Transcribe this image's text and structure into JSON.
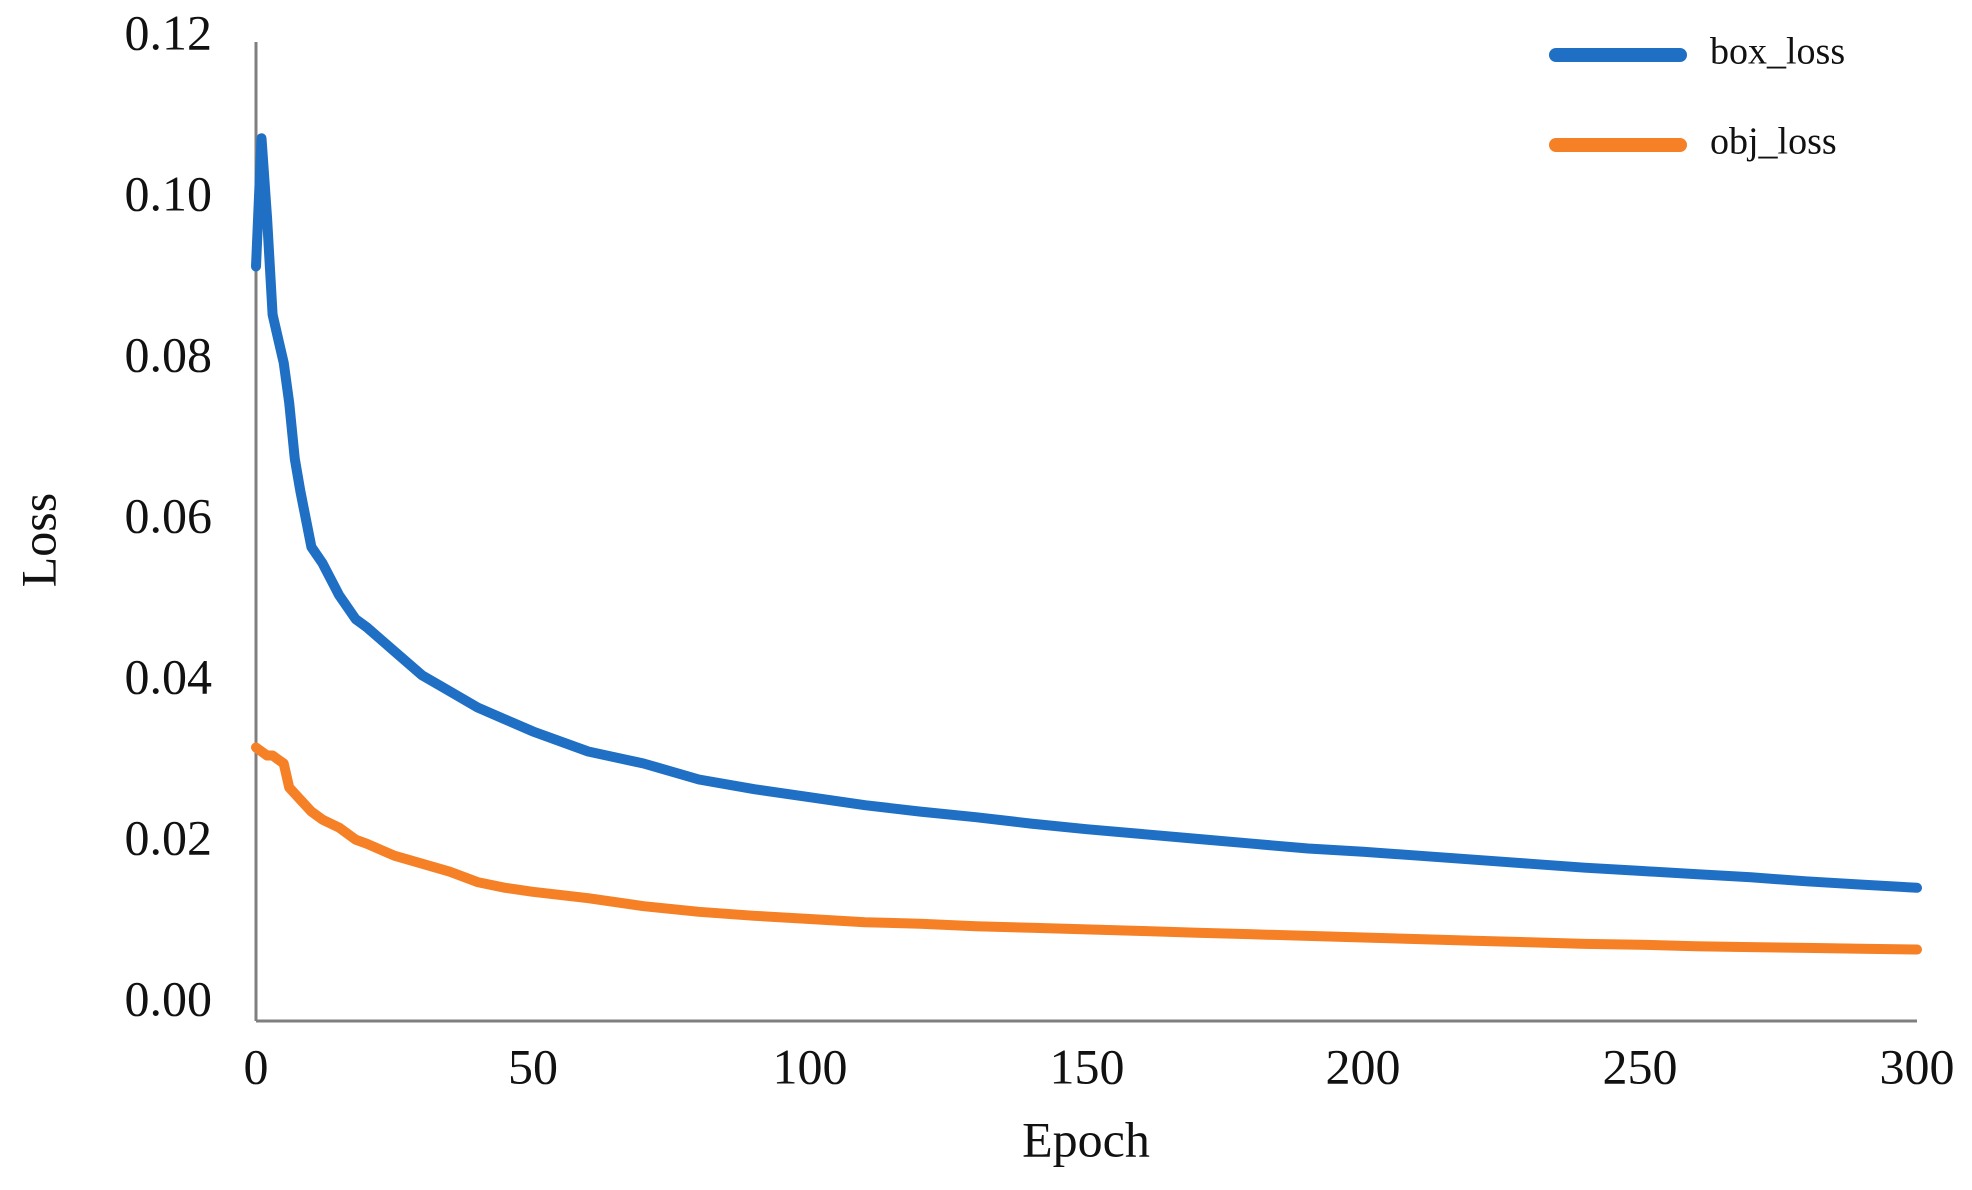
{
  "chart_data": {
    "type": "line",
    "title": "",
    "xlabel": "Epoch",
    "ylabel": "Loss",
    "xlim": [
      0,
      300
    ],
    "ylim": [
      0,
      0.12
    ],
    "xticks": [
      "0",
      "50",
      "100",
      "150",
      "200",
      "250",
      "300"
    ],
    "yticks": [
      "0.00",
      "0.02",
      "0.04",
      "0.06",
      "0.08",
      "0.10",
      "0.12"
    ],
    "grid": false,
    "legend_position": "top-right",
    "series": [
      {
        "name": "box_loss",
        "color": "#1f6fc4",
        "x": [
          0,
          1,
          2,
          3,
          4,
          5,
          6,
          7,
          8,
          10,
          12,
          15,
          18,
          20,
          25,
          30,
          35,
          40,
          45,
          50,
          60,
          70,
          80,
          90,
          100,
          110,
          120,
          130,
          140,
          150,
          160,
          170,
          180,
          190,
          200,
          210,
          220,
          230,
          240,
          250,
          260,
          270,
          280,
          290,
          300
        ],
        "y": [
          0.092,
          0.108,
          0.098,
          0.086,
          0.083,
          0.08,
          0.075,
          0.068,
          0.064,
          0.057,
          0.055,
          0.051,
          0.048,
          0.047,
          0.044,
          0.041,
          0.039,
          0.037,
          0.0355,
          0.034,
          0.0315,
          0.03,
          0.028,
          0.0268,
          0.0258,
          0.0248,
          0.024,
          0.0233,
          0.0225,
          0.0218,
          0.0212,
          0.0206,
          0.02,
          0.0194,
          0.019,
          0.0185,
          0.018,
          0.0175,
          0.017,
          0.0166,
          0.0162,
          0.0158,
          0.0153,
          0.0149,
          0.0145
        ]
      },
      {
        "name": "obj_loss",
        "color": "#f58026",
        "x": [
          0,
          1,
          2,
          3,
          4,
          5,
          6,
          8,
          10,
          12,
          15,
          18,
          20,
          25,
          30,
          35,
          40,
          45,
          50,
          60,
          70,
          80,
          90,
          100,
          110,
          120,
          130,
          140,
          150,
          160,
          170,
          180,
          190,
          200,
          210,
          220,
          230,
          240,
          250,
          260,
          270,
          280,
          290,
          300
        ],
        "y": [
          0.032,
          0.0315,
          0.031,
          0.031,
          0.0305,
          0.03,
          0.027,
          0.0255,
          0.024,
          0.023,
          0.022,
          0.0205,
          0.02,
          0.0185,
          0.0175,
          0.0165,
          0.0152,
          0.0145,
          0.014,
          0.0132,
          0.0122,
          0.0115,
          0.011,
          0.0106,
          0.0102,
          0.01,
          0.0097,
          0.0095,
          0.0093,
          0.0091,
          0.0089,
          0.0087,
          0.0085,
          0.0083,
          0.0081,
          0.0079,
          0.0077,
          0.0075,
          0.0074,
          0.0072,
          0.0071,
          0.007,
          0.0069,
          0.0068
        ]
      }
    ]
  }
}
